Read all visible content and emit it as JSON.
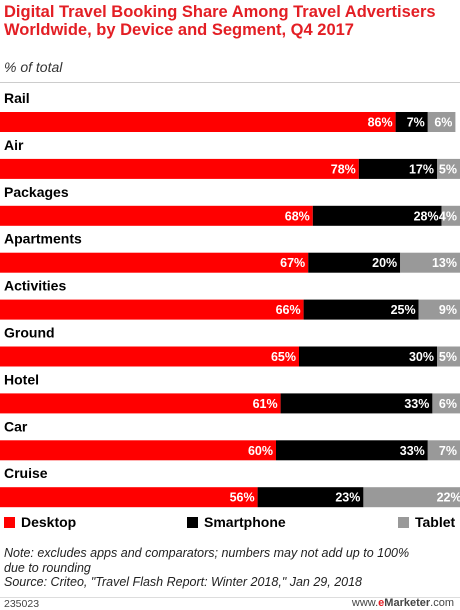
{
  "header": {
    "title": "Digital Travel Booking Share Among Travel Advertisers Worldwide, by Device and Segment, Q4 2017",
    "subtitle": "% of total"
  },
  "chart_data": {
    "type": "bar",
    "orientation": "horizontal-stacked-100",
    "title": "Digital Travel Booking Share Among Travel Advertisers Worldwide, by Device and Segment, Q4 2017",
    "subtitle": "% of total",
    "categories": [
      "Rail",
      "Air",
      "Packages",
      "Apartments",
      "Activities",
      "Ground",
      "Hotel",
      "Car",
      "Cruise"
    ],
    "series": [
      {
        "name": "Desktop",
        "color": "#ff0000",
        "values": [
          86,
          78,
          68,
          67,
          66,
          65,
          61,
          60,
          56
        ]
      },
      {
        "name": "Smartphone",
        "color": "#000000",
        "values": [
          7,
          17,
          28,
          20,
          25,
          30,
          33,
          33,
          23
        ]
      },
      {
        "name": "Tablet",
        "color": "#999999",
        "values": [
          6,
          5,
          4,
          13,
          9,
          5,
          6,
          7,
          22
        ]
      }
    ],
    "value_suffix": "%",
    "xlim": [
      0,
      100
    ],
    "grid": false,
    "legend_position": "bottom"
  },
  "legend": {
    "items": [
      {
        "label": "Desktop",
        "color": "#ff0000"
      },
      {
        "label": "Smartphone",
        "color": "#000000"
      },
      {
        "label": "Tablet",
        "color": "#999999"
      }
    ]
  },
  "footer": {
    "note_line1": "Note: excludes apps and comparators; numbers may not add up to 100%",
    "note_line2": "due to rounding",
    "source": "Source: Criteo, \"Travel Flash Report: Winter 2018,\" Jan 29, 2018",
    "chart_id": "235023",
    "brand_prefix": "www.",
    "brand_e": "e",
    "brand_name": "Marketer",
    "brand_suffix": ".com"
  }
}
